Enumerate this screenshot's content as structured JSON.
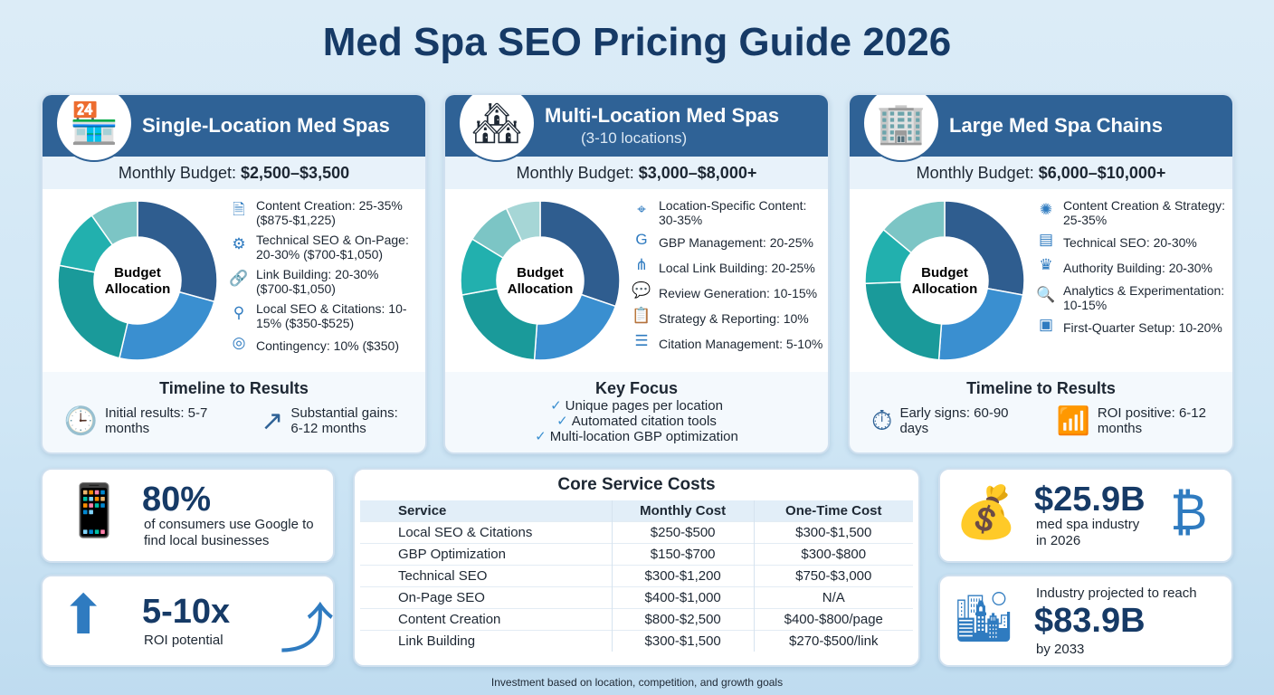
{
  "title": "Med Spa SEO Pricing Guide 2026",
  "colors": {
    "header": "#2f6296",
    "segments": [
      "#2f5d8f",
      "#3a8fd0",
      "#1a9a9a",
      "#22b0ae",
      "#7cc5c5",
      "#a6d6d6"
    ]
  },
  "cards": [
    {
      "title": "Single-Location Med Spas",
      "subtitle": "",
      "budget_label": "Monthly Budget:",
      "budget_value": "$2,500–$3,500",
      "donut_label": "Budget Allocation",
      "segment_shares": [
        30,
        25,
        25,
        12.5,
        10
      ],
      "items": [
        {
          "icon": "document-icon",
          "text": "Content Creation: 25-35% ($875-$1,225)"
        },
        {
          "icon": "gear-icon",
          "text": "Technical SEO & On-Page: 20-30% ($700-$1,050)"
        },
        {
          "icon": "link-icon",
          "text": "Link Building: 20-30% ($700-$1,050)"
        },
        {
          "icon": "map-pin-icon",
          "text": "Local SEO & Citations: 10-15% ($350-$525)"
        },
        {
          "icon": "coins-icon",
          "text": "Contingency: 10% ($350)"
        }
      ],
      "footer_title": "Timeline to Results",
      "timeline": [
        {
          "icon": "clock-icon",
          "text": "Initial results: 5-7 months"
        },
        {
          "icon": "trend-up-icon",
          "text": "Substantial gains: 6-12 months"
        }
      ]
    },
    {
      "title": "Multi-Location Med Spas",
      "subtitle": "(3-10 locations)",
      "budget_label": "Monthly Budget:",
      "budget_value": "$3,000–$8,000+",
      "donut_label": "Budget Allocation",
      "segment_shares": [
        32.5,
        22.5,
        22.5,
        12.5,
        10,
        7.5
      ],
      "items": [
        {
          "icon": "map-icon",
          "text": "Location-Specific Content: 30-35%"
        },
        {
          "icon": "google-icon",
          "text": "GBP Management: 20-25%"
        },
        {
          "icon": "network-icon",
          "text": "Local Link Building: 20-25%"
        },
        {
          "icon": "review-icon",
          "text": "Review Generation: 10-15%"
        },
        {
          "icon": "clipboard-icon",
          "text": "Strategy & Reporting: 10%"
        },
        {
          "icon": "list-icon",
          "text": "Citation Management: 5-10%"
        }
      ],
      "footer_title": "Key Focus",
      "focus": [
        "Unique pages per location",
        "Automated citation tools",
        "Multi-location GBP optimization"
      ]
    },
    {
      "title": "Large Med Spa Chains",
      "subtitle": "",
      "budget_label": "Monthly Budget:",
      "budget_value": "$6,000–$10,000+",
      "donut_label": "Budget Allocation",
      "segment_shares": [
        30,
        25,
        25,
        12.5,
        15
      ],
      "items": [
        {
          "icon": "brain-icon",
          "text": "Content Creation & Strategy: 25-35%"
        },
        {
          "icon": "server-icon",
          "text": "Technical SEO: 20-30%"
        },
        {
          "icon": "crown-icon",
          "text": "Authority Building: 20-30%"
        },
        {
          "icon": "magnifier-icon",
          "text": "Analytics & Experimentation: 10-15%"
        },
        {
          "icon": "browser-icon",
          "text": "First-Quarter Setup: 10-20%"
        }
      ],
      "footer_title": "Timeline to Results",
      "timeline": [
        {
          "icon": "stopwatch-icon",
          "text": "Early signs: 60-90 days"
        },
        {
          "icon": "bar-chart-icon",
          "text": "ROI positive: 6-12 months"
        }
      ]
    }
  ],
  "stats": {
    "google": {
      "value": "80%",
      "text": "of consumers use Google to find local businesses"
    },
    "roi": {
      "value": "5-10x",
      "text": "ROI potential"
    },
    "industry": {
      "value": "$25.9B",
      "text": "med spa industry in 2026"
    },
    "projection": {
      "pre": "Industry projected to reach",
      "value": "$83.9B",
      "post": "by 2033"
    }
  },
  "table": {
    "title": "Core Service Costs",
    "headers": [
      "Service",
      "Monthly Cost",
      "One-Time Cost"
    ],
    "rows": [
      [
        "Local SEO & Citations",
        "$250-$500",
        "$300-$1,500"
      ],
      [
        "GBP Optimization",
        "$150-$700",
        "$300-$800"
      ],
      [
        "Technical SEO",
        "$300-$1,200",
        "$750-$3,000"
      ],
      [
        "On-Page SEO",
        "$400-$1,000",
        "N/A"
      ],
      [
        "Content Creation",
        "$800-$2,500",
        "$400-$800/page"
      ],
      [
        "Link Building",
        "$300-$1,500",
        "$270-$500/link"
      ]
    ]
  },
  "note": "Investment based on location, competition, and growth goals"
}
